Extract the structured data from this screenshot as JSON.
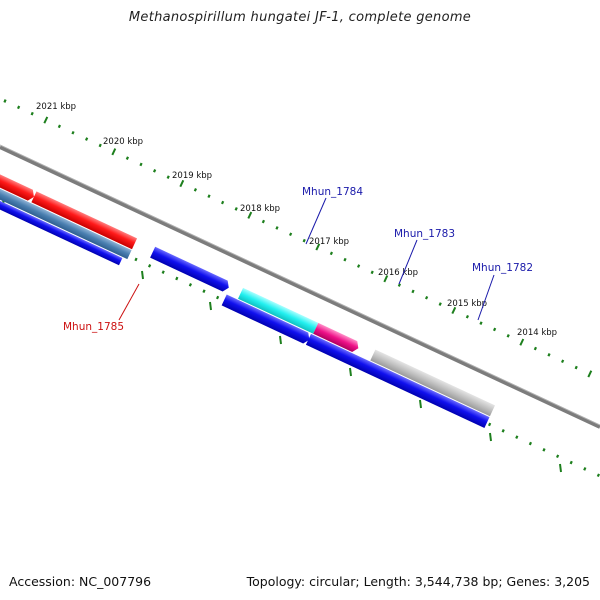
{
  "title": "Methanospirillum hungatei JF-1, complete genome",
  "footer": {
    "accession": "Accession: NC_007796",
    "summary": "Topology: circular; Length: 3,544,738 bp; Genes: 3,205"
  },
  "ticks": [
    "2021 kbp",
    "2020 kbp",
    "2019 kbp",
    "2018 kbp",
    "2017 kbp",
    "2016 kbp",
    "2015 kbp",
    "2014 kbp"
  ],
  "gene_labels": [
    {
      "name": "Mhun_1784",
      "color": "#1a1aaa"
    },
    {
      "name": "Mhun_1783",
      "color": "#1a1aaa"
    },
    {
      "name": "Mhun_1782",
      "color": "#1a1aaa"
    },
    {
      "name": "Mhun_1785",
      "color": "#cc1111"
    }
  ],
  "colors": {
    "tick_green": "#1d7f1d",
    "backbone": "#808080",
    "red_gene": "#ee1111",
    "blue_gene": "#1111dd",
    "steel_gene": "#4a7fb0",
    "cyan_gene": "#22eeee",
    "magenta_gene": "#ee1188",
    "grey_gene": "#bbbbbb"
  }
}
